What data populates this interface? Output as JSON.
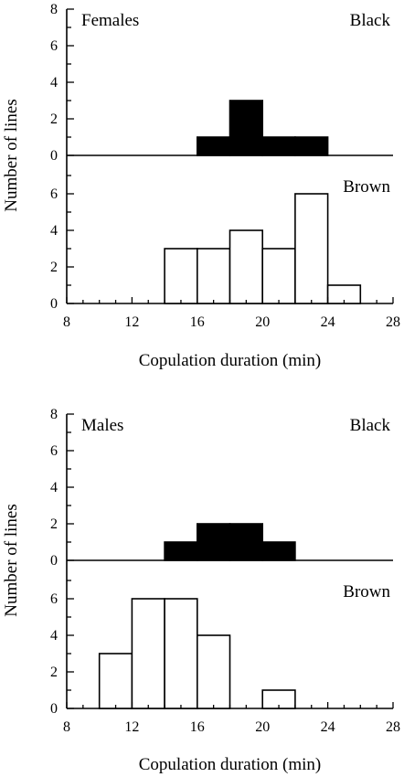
{
  "chart_data": [
    {
      "type": "bar",
      "group_label": "Females",
      "ylabel": "Number of lines",
      "xlabel": "Copulation duration (min)",
      "x_ticks": [
        8,
        12,
        16,
        20,
        24,
        28
      ],
      "xlim": [
        8,
        28
      ],
      "bin_width": 2,
      "panels": [
        {
          "series_label": "Black",
          "fill": "#000000",
          "ylim": [
            0,
            8
          ],
          "y_ticks": [
            0,
            2,
            4,
            6,
            8
          ],
          "bin_starts": [
            16,
            18,
            20,
            22
          ],
          "values": [
            1,
            3,
            1,
            1
          ]
        },
        {
          "series_label": "Brown",
          "fill": "#ffffff",
          "ylim": [
            0,
            7
          ],
          "y_ticks": [
            0,
            2,
            4,
            6
          ],
          "bin_starts": [
            14,
            16,
            18,
            20,
            22,
            24
          ],
          "values": [
            3,
            3,
            4,
            3,
            6,
            1
          ]
        }
      ]
    },
    {
      "type": "bar",
      "group_label": "Males",
      "ylabel": "Number of lines",
      "xlabel": "Copulation duration (min)",
      "x_ticks": [
        8,
        12,
        16,
        20,
        24,
        28
      ],
      "xlim": [
        8,
        28
      ],
      "bin_width": 2,
      "panels": [
        {
          "series_label": "Black",
          "fill": "#000000",
          "ylim": [
            0,
            8
          ],
          "y_ticks": [
            0,
            2,
            4,
            6,
            8
          ],
          "bin_starts": [
            14,
            16,
            18,
            20
          ],
          "values": [
            1,
            2,
            2,
            1
          ]
        },
        {
          "series_label": "Brown",
          "fill": "#ffffff",
          "ylim": [
            0,
            7
          ],
          "y_ticks": [
            0,
            2,
            4,
            6
          ],
          "bin_starts": [
            10,
            12,
            14,
            16,
            20
          ],
          "values": [
            3,
            6,
            6,
            4,
            1
          ]
        }
      ]
    }
  ]
}
